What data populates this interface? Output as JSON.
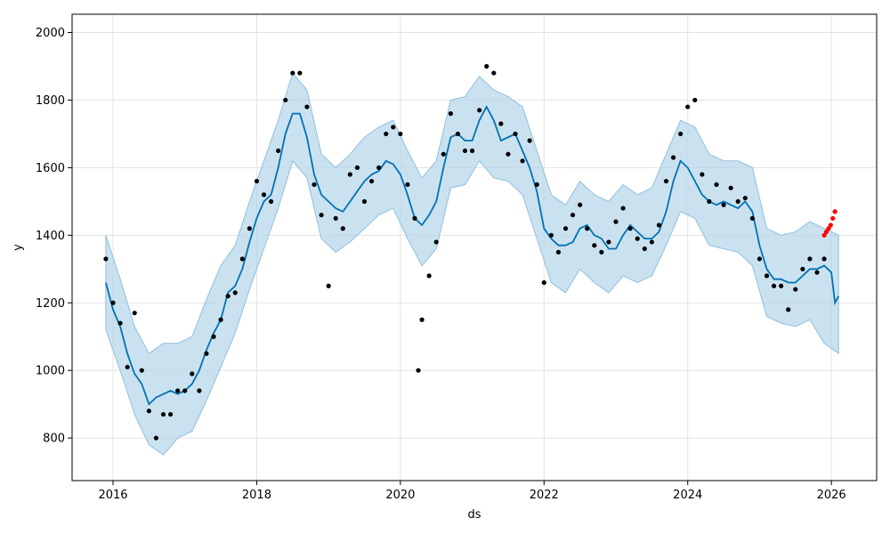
{
  "chart_data": {
    "type": "scatter",
    "title": "",
    "xlabel": "ds",
    "ylabel": "y",
    "xlim": [
      2015.43,
      2026.63
    ],
    "ylim": [
      674,
      2054
    ],
    "grid": true,
    "x_ticks": [
      2016,
      2018,
      2020,
      2022,
      2024,
      2026
    ],
    "x_tick_labels": [
      "2016",
      "2018",
      "2020",
      "2022",
      "2024",
      "2026"
    ],
    "y_ticks": [
      800,
      1000,
      1200,
      1400,
      1600,
      1800,
      2000
    ],
    "y_tick_labels": [
      "800",
      "1000",
      "1200",
      "1400",
      "1600",
      "1800",
      "2000"
    ],
    "colors": {
      "observed": "#000000",
      "recent": "#ff0000",
      "forecast": "#0072b2",
      "interval": "#b4d5e9",
      "interval_edge": "#8fbfde"
    },
    "series": [
      {
        "role": "observed",
        "x": [
          2015.9,
          2016.0,
          2016.1,
          2016.2,
          2016.3,
          2016.4,
          2016.5,
          2016.6,
          2016.7,
          2016.8,
          2016.9,
          2017.0,
          2017.1,
          2017.2,
          2017.3,
          2017.4,
          2017.5,
          2017.6,
          2017.7,
          2017.8,
          2017.9,
          2018.0,
          2018.1,
          2018.2,
          2018.3,
          2018.4,
          2018.5,
          2018.6,
          2018.7,
          2018.8,
          2018.9,
          2019.0,
          2019.1,
          2019.2,
          2019.3,
          2019.4,
          2019.5,
          2019.6,
          2019.7,
          2019.8,
          2019.9,
          2020.0,
          2020.1,
          2020.2,
          2020.25,
          2020.3,
          2020.4,
          2020.5,
          2020.6,
          2020.7,
          2020.8,
          2020.9,
          2021.0,
          2021.1,
          2021.2,
          2021.3,
          2021.4,
          2021.5,
          2021.6,
          2021.7,
          2021.8,
          2021.9,
          2022.0,
          2022.1,
          2022.2,
          2022.3,
          2022.4,
          2022.5,
          2022.6,
          2022.7,
          2022.8,
          2022.9,
          2023.0,
          2023.1,
          2023.2,
          2023.3,
          2023.4,
          2023.5,
          2023.6,
          2023.7,
          2023.8,
          2023.9,
          2024.0,
          2024.1,
          2024.2,
          2024.3,
          2024.4,
          2024.5,
          2024.6,
          2024.7,
          2024.8,
          2024.9,
          2025.0,
          2025.1,
          2025.2,
          2025.3,
          2025.4,
          2025.5,
          2025.6,
          2025.7,
          2025.8,
          2025.9
        ],
        "y": [
          1330,
          1200,
          1140,
          1010,
          1170,
          1000,
          880,
          800,
          870,
          870,
          940,
          940,
          990,
          940,
          1050,
          1100,
          1150,
          1220,
          1230,
          1330,
          1420,
          1560,
          1520,
          1500,
          1650,
          1800,
          1880,
          1880,
          1780,
          1550,
          1460,
          1250,
          1450,
          1420,
          1580,
          1600,
          1500,
          1560,
          1600,
          1700,
          1720,
          1700,
          1550,
          1450,
          1000,
          1150,
          1280,
          1380,
          1640,
          1760,
          1700,
          1650,
          1650,
          1770,
          1900,
          1880,
          1730,
          1640,
          1700,
          1620,
          1680,
          1550,
          1260,
          1400,
          1350,
          1420,
          1460,
          1490,
          1420,
          1370,
          1350,
          1380,
          1440,
          1480,
          1420,
          1390,
          1360,
          1380,
          1430,
          1560,
          1630,
          1700,
          1780,
          1800,
          1580,
          1500,
          1550,
          1490,
          1540,
          1500,
          1510,
          1450,
          1330,
          1280,
          1250,
          1250,
          1180,
          1240,
          1300,
          1330,
          1290,
          1330
        ]
      },
      {
        "role": "recent",
        "x": [
          2025.9,
          2025.93,
          2025.96,
          2025.99,
          2026.02,
          2026.05
        ],
        "y": [
          1400,
          1410,
          1420,
          1430,
          1450,
          1470
        ]
      },
      {
        "role": "forecast",
        "x": [
          2015.9,
          2016.0,
          2016.1,
          2016.2,
          2016.3,
          2016.4,
          2016.5,
          2016.6,
          2016.7,
          2016.8,
          2016.9,
          2017.0,
          2017.1,
          2017.2,
          2017.3,
          2017.4,
          2017.5,
          2017.6,
          2017.7,
          2017.8,
          2017.9,
          2018.0,
          2018.1,
          2018.2,
          2018.3,
          2018.4,
          2018.5,
          2018.6,
          2018.7,
          2018.8,
          2018.9,
          2019.0,
          2019.1,
          2019.2,
          2019.3,
          2019.4,
          2019.5,
          2019.6,
          2019.7,
          2019.8,
          2019.9,
          2020.0,
          2020.1,
          2020.2,
          2020.3,
          2020.4,
          2020.5,
          2020.6,
          2020.7,
          2020.8,
          2020.9,
          2021.0,
          2021.1,
          2021.2,
          2021.3,
          2021.4,
          2021.5,
          2021.6,
          2021.7,
          2021.8,
          2021.9,
          2022.0,
          2022.1,
          2022.2,
          2022.3,
          2022.4,
          2022.5,
          2022.6,
          2022.7,
          2022.8,
          2022.9,
          2023.0,
          2023.1,
          2023.2,
          2023.3,
          2023.4,
          2023.5,
          2023.6,
          2023.7,
          2023.8,
          2023.9,
          2024.0,
          2024.1,
          2024.2,
          2024.3,
          2024.4,
          2024.5,
          2024.6,
          2024.7,
          2024.8,
          2024.9,
          2025.0,
          2025.1,
          2025.2,
          2025.3,
          2025.4,
          2025.5,
          2025.6,
          2025.7,
          2025.8,
          2025.9,
          2026.0,
          2026.05,
          2026.1
        ],
        "y": [
          1260,
          1180,
          1130,
          1050,
          990,
          960,
          900,
          920,
          930,
          940,
          930,
          940,
          960,
          1000,
          1060,
          1110,
          1150,
          1230,
          1250,
          1300,
          1380,
          1450,
          1500,
          1520,
          1600,
          1700,
          1760,
          1760,
          1690,
          1580,
          1520,
          1500,
          1480,
          1470,
          1500,
          1530,
          1560,
          1580,
          1590,
          1620,
          1610,
          1580,
          1520,
          1450,
          1430,
          1460,
          1500,
          1600,
          1690,
          1700,
          1680,
          1680,
          1740,
          1780,
          1740,
          1680,
          1690,
          1700,
          1650,
          1600,
          1530,
          1420,
          1390,
          1370,
          1370,
          1380,
          1420,
          1430,
          1400,
          1390,
          1360,
          1360,
          1400,
          1430,
          1410,
          1390,
          1390,
          1410,
          1470,
          1560,
          1620,
          1600,
          1560,
          1520,
          1500,
          1490,
          1500,
          1490,
          1480,
          1500,
          1470,
          1370,
          1300,
          1270,
          1270,
          1260,
          1260,
          1280,
          1300,
          1300,
          1310,
          1290,
          1200,
          1220
        ]
      },
      {
        "role": "interval_upper",
        "x": [
          2015.9,
          2016.1,
          2016.3,
          2016.5,
          2016.7,
          2016.9,
          2017.1,
          2017.3,
          2017.5,
          2017.7,
          2017.9,
          2018.1,
          2018.3,
          2018.5,
          2018.7,
          2018.9,
          2019.1,
          2019.3,
          2019.5,
          2019.7,
          2019.9,
          2020.1,
          2020.3,
          2020.5,
          2020.7,
          2020.9,
          2021.1,
          2021.3,
          2021.5,
          2021.7,
          2021.9,
          2022.1,
          2022.3,
          2022.5,
          2022.7,
          2022.9,
          2023.1,
          2023.3,
          2023.5,
          2023.7,
          2023.9,
          2024.1,
          2024.3,
          2024.5,
          2024.7,
          2024.9,
          2025.1,
          2025.3,
          2025.5,
          2025.7,
          2025.9,
          2026.1
        ],
        "y": [
          1400,
          1270,
          1130,
          1050,
          1080,
          1080,
          1100,
          1210,
          1310,
          1370,
          1500,
          1620,
          1740,
          1880,
          1830,
          1640,
          1600,
          1640,
          1690,
          1720,
          1740,
          1650,
          1570,
          1620,
          1800,
          1810,
          1870,
          1830,
          1810,
          1780,
          1650,
          1520,
          1490,
          1560,
          1520,
          1500,
          1550,
          1520,
          1540,
          1640,
          1740,
          1720,
          1640,
          1620,
          1620,
          1600,
          1420,
          1400,
          1410,
          1440,
          1420,
          1400
        ]
      },
      {
        "role": "interval_lower",
        "x": [
          2015.9,
          2016.1,
          2016.3,
          2016.5,
          2016.7,
          2016.9,
          2017.1,
          2017.3,
          2017.5,
          2017.7,
          2017.9,
          2018.1,
          2018.3,
          2018.5,
          2018.7,
          2018.9,
          2019.1,
          2019.3,
          2019.5,
          2019.7,
          2019.9,
          2020.1,
          2020.3,
          2020.5,
          2020.7,
          2020.9,
          2021.1,
          2021.3,
          2021.5,
          2021.7,
          2021.9,
          2022.1,
          2022.3,
          2022.5,
          2022.7,
          2022.9,
          2023.1,
          2023.3,
          2023.5,
          2023.7,
          2023.9,
          2024.1,
          2024.3,
          2024.5,
          2024.7,
          2024.9,
          2025.1,
          2025.3,
          2025.5,
          2025.7,
          2025.9,
          2026.1
        ],
        "y": [
          1120,
          1000,
          870,
          780,
          750,
          800,
          820,
          910,
          1010,
          1110,
          1240,
          1360,
          1480,
          1620,
          1570,
          1390,
          1350,
          1380,
          1420,
          1460,
          1480,
          1390,
          1310,
          1360,
          1540,
          1550,
          1620,
          1570,
          1560,
          1520,
          1390,
          1260,
          1230,
          1300,
          1260,
          1230,
          1280,
          1260,
          1280,
          1370,
          1470,
          1450,
          1370,
          1360,
          1350,
          1310,
          1160,
          1140,
          1130,
          1150,
          1080,
          1050
        ]
      }
    ]
  }
}
